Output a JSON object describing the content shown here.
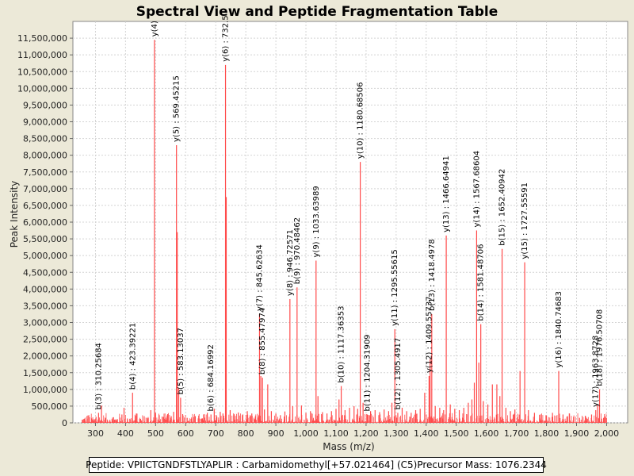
{
  "chart_data": {
    "type": "spectrum",
    "title": "Spectral View and Peptide Fragmentation Table",
    "xlabel": "Mass (m/z)",
    "ylabel": "Peak Intensity",
    "xlim": [
      225,
      2070
    ],
    "ylim": [
      0,
      12000000
    ],
    "x_ticks": [
      300,
      400,
      500,
      600,
      700,
      800,
      900,
      1000,
      1100,
      1200,
      1300,
      1400,
      1500,
      1600,
      1700,
      1800,
      1900,
      2000
    ],
    "x_tick_labels": [
      "300",
      "400",
      "500",
      "600",
      "700",
      "800",
      "900",
      "1,000",
      "1,100",
      "1,200",
      "1,300",
      "1,400",
      "1,500",
      "1,600",
      "1,700",
      "1,800",
      "1,900",
      "2,000"
    ],
    "y_ticks": [
      0,
      500000,
      1000000,
      1500000,
      2000000,
      2500000,
      3000000,
      3500000,
      4000000,
      4500000,
      5000000,
      5500000,
      6000000,
      6500000,
      7000000,
      7500000,
      8000000,
      8500000,
      9000000,
      9500000,
      10000000,
      10500000,
      11000000,
      11500000
    ],
    "y_tick_labels": [
      "0",
      "500,000",
      "1,000,000",
      "1,500,000",
      "2,000,000",
      "2,500,000",
      "3,000,000",
      "3,500,000",
      "4,000,000",
      "4,500,000",
      "5,000,000",
      "5,500,000",
      "6,000,000",
      "6,500,000",
      "7,000,000",
      "7,500,000",
      "8,000,000",
      "8,500,000",
      "9,000,000",
      "9,500,000",
      "10,000,000",
      "10,500,000",
      "11,000,000",
      "11,500,000"
    ],
    "peak_color": "#ff4a4a",
    "annotations": [
      {
        "mz": 310.26,
        "intensity": 300000,
        "text": "b(3) : 310.25684"
      },
      {
        "mz": 423.39,
        "intensity": 900000,
        "text": "b(4) : 423.39221"
      },
      {
        "mz": 496.3,
        "intensity": 11450000,
        "text": "y(4)"
      },
      {
        "mz": 569.45,
        "intensity": 8300000,
        "text": "y(5) : 569.45215"
      },
      {
        "mz": 583.13,
        "intensity": 750000,
        "text": "b(5) : 583.13037"
      },
      {
        "mz": 684.17,
        "intensity": 250000,
        "text": "b(6) : 684.16992"
      },
      {
        "mz": 732.5,
        "intensity": 10700000,
        "text": "y(6) : 732.5"
      },
      {
        "mz": 845.63,
        "intensity": 3250000,
        "text": "y(7) : 845.62634"
      },
      {
        "mz": 855.48,
        "intensity": 1350000,
        "text": "b(8) : 855.47974"
      },
      {
        "mz": 946.73,
        "intensity": 3700000,
        "text": "y(8) : 946.72571"
      },
      {
        "mz": 970.48,
        "intensity": 4050000,
        "text": "b(9) : 970.48462"
      },
      {
        "mz": 1033.64,
        "intensity": 4850000,
        "text": "y(9) : 1033.63989"
      },
      {
        "mz": 1117.36,
        "intensity": 1100000,
        "text": "b(10) : 1117.36353"
      },
      {
        "mz": 1180.69,
        "intensity": 7800000,
        "text": "y(10) : 1180.68506"
      },
      {
        "mz": 1204.32,
        "intensity": 250000,
        "text": "b(11) : 1204.31909"
      },
      {
        "mz": 1295.56,
        "intensity": 2800000,
        "text": "y(11) : 1295.55615"
      },
      {
        "mz": 1305.49,
        "intensity": 300000,
        "text": "b(12) : 1305.4917"
      },
      {
        "mz": 1409.56,
        "intensity": 1400000,
        "text": "y(12) : 1409.55737"
      },
      {
        "mz": 1418.5,
        "intensity": 3250000,
        "text": "b(13) : 1418.4978"
      },
      {
        "mz": 1466.65,
        "intensity": 5600000,
        "text": "y(13) : 1466.64941"
      },
      {
        "mz": 1567.69,
        "intensity": 5750000,
        "text": "y(14) : 1567.68604"
      },
      {
        "mz": 1581.49,
        "intensity": 2950000,
        "text": "b(14) : 1581.48706"
      },
      {
        "mz": 1652.41,
        "intensity": 5200000,
        "text": "b(15) : 1652.40942"
      },
      {
        "mz": 1727.56,
        "intensity": 4800000,
        "text": "y(15) : 1727.55591"
      },
      {
        "mz": 1840.75,
        "intensity": 1550000,
        "text": "y(16) : 1840.74683"
      },
      {
        "mz": 1963.87,
        "intensity": 380000,
        "text": "y(17) : 1963.8728"
      },
      {
        "mz": 1976.51,
        "intensity": 1000000,
        "text": "b(18) : 1976.50708"
      }
    ],
    "peaks": [
      [
        262,
        120000
      ],
      [
        275,
        220000
      ],
      [
        290,
        100000
      ],
      [
        302,
        180000
      ],
      [
        310.26,
        300000
      ],
      [
        320,
        520000
      ],
      [
        333,
        140000
      ],
      [
        348,
        90000
      ],
      [
        360,
        170000
      ],
      [
        373,
        110000
      ],
      [
        388,
        250000
      ],
      [
        395,
        450000
      ],
      [
        406,
        130000
      ],
      [
        423.39,
        900000
      ],
      [
        436,
        280000
      ],
      [
        450,
        120000
      ],
      [
        462,
        200000
      ],
      [
        475,
        150000
      ],
      [
        484,
        380000
      ],
      [
        496.3,
        11450000
      ],
      [
        500,
        300000
      ],
      [
        512,
        230000
      ],
      [
        525,
        180000
      ],
      [
        540,
        260000
      ],
      [
        552,
        200000
      ],
      [
        560,
        330000
      ],
      [
        569.45,
        8300000
      ],
      [
        572,
        5700000
      ],
      [
        577,
        1050000
      ],
      [
        583.13,
        750000
      ],
      [
        590,
        260000
      ],
      [
        605,
        150000
      ],
      [
        618,
        120000
      ],
      [
        632,
        200000
      ],
      [
        645,
        130000
      ],
      [
        660,
        250000
      ],
      [
        672,
        300000
      ],
      [
        684.17,
        250000
      ],
      [
        695,
        420000
      ],
      [
        702,
        230000
      ],
      [
        715,
        330000
      ],
      [
        724,
        280000
      ],
      [
        732.5,
        10700000
      ],
      [
        735,
        6750000
      ],
      [
        748,
        380000
      ],
      [
        760,
        220000
      ],
      [
        775,
        310000
      ],
      [
        790,
        250000
      ],
      [
        805,
        350000
      ],
      [
        820,
        280000
      ],
      [
        832,
        200000
      ],
      [
        845.63,
        3250000
      ],
      [
        850,
        1400000
      ],
      [
        855.48,
        1350000
      ],
      [
        862,
        400000
      ],
      [
        873,
        1150000
      ],
      [
        885,
        350000
      ],
      [
        900,
        280000
      ],
      [
        915,
        230000
      ],
      [
        930,
        340000
      ],
      [
        946.73,
        3700000
      ],
      [
        956,
        500000
      ],
      [
        970.48,
        4050000
      ],
      [
        985,
        520000
      ],
      [
        1000,
        300000
      ],
      [
        1015,
        350000
      ],
      [
        1033.64,
        4850000
      ],
      [
        1040,
        800000
      ],
      [
        1055,
        320000
      ],
      [
        1070,
        280000
      ],
      [
        1085,
        350000
      ],
      [
        1100,
        420000
      ],
      [
        1110,
        700000
      ],
      [
        1117.36,
        1100000
      ],
      [
        1130,
        380000
      ],
      [
        1145,
        450000
      ],
      [
        1160,
        500000
      ],
      [
        1172,
        420000
      ],
      [
        1180.69,
        7800000
      ],
      [
        1190,
        600000
      ],
      [
        1204.32,
        250000
      ],
      [
        1215,
        350000
      ],
      [
        1230,
        380000
      ],
      [
        1245,
        320000
      ],
      [
        1260,
        400000
      ],
      [
        1275,
        350000
      ],
      [
        1286,
        600000
      ],
      [
        1295.56,
        2800000
      ],
      [
        1305.49,
        300000
      ],
      [
        1320,
        450000
      ],
      [
        1335,
        350000
      ],
      [
        1350,
        300000
      ],
      [
        1365,
        380000
      ],
      [
        1380,
        420000
      ],
      [
        1395,
        900000
      ],
      [
        1409.56,
        1400000
      ],
      [
        1413,
        1900000
      ],
      [
        1418.5,
        3250000
      ],
      [
        1430,
        500000
      ],
      [
        1445,
        450000
      ],
      [
        1458,
        380000
      ],
      [
        1466.65,
        5600000
      ],
      [
        1480,
        550000
      ],
      [
        1495,
        420000
      ],
      [
        1510,
        380000
      ],
      [
        1525,
        450000
      ],
      [
        1540,
        600000
      ],
      [
        1552,
        700000
      ],
      [
        1560,
        1200000
      ],
      [
        1567.69,
        5750000
      ],
      [
        1575,
        1800000
      ],
      [
        1581.49,
        2950000
      ],
      [
        1590,
        650000
      ],
      [
        1605,
        550000
      ],
      [
        1620,
        1150000
      ],
      [
        1635,
        1150000
      ],
      [
        1645,
        800000
      ],
      [
        1652.41,
        5200000
      ],
      [
        1665,
        450000
      ],
      [
        1680,
        350000
      ],
      [
        1695,
        400000
      ],
      [
        1712,
        1550000
      ],
      [
        1727.56,
        4800000
      ],
      [
        1740,
        380000
      ],
      [
        1760,
        300000
      ],
      [
        1780,
        250000
      ],
      [
        1800,
        220000
      ],
      [
        1820,
        300000
      ],
      [
        1840.75,
        1550000
      ],
      [
        1855,
        250000
      ],
      [
        1870,
        200000
      ],
      [
        1890,
        180000
      ],
      [
        1910,
        150000
      ],
      [
        1930,
        200000
      ],
      [
        1950,
        250000
      ],
      [
        1963.87,
        380000
      ],
      [
        1970,
        550000
      ],
      [
        1976.51,
        1000000
      ],
      [
        1990,
        150000
      ]
    ]
  },
  "info": {
    "peptide": "Peptide: VPIICTGNDFSTLYAPLIR : Carbamidomethyl[+57.021464] (C5)",
    "precursor": "Precursor Mass: 1076.2344"
  }
}
